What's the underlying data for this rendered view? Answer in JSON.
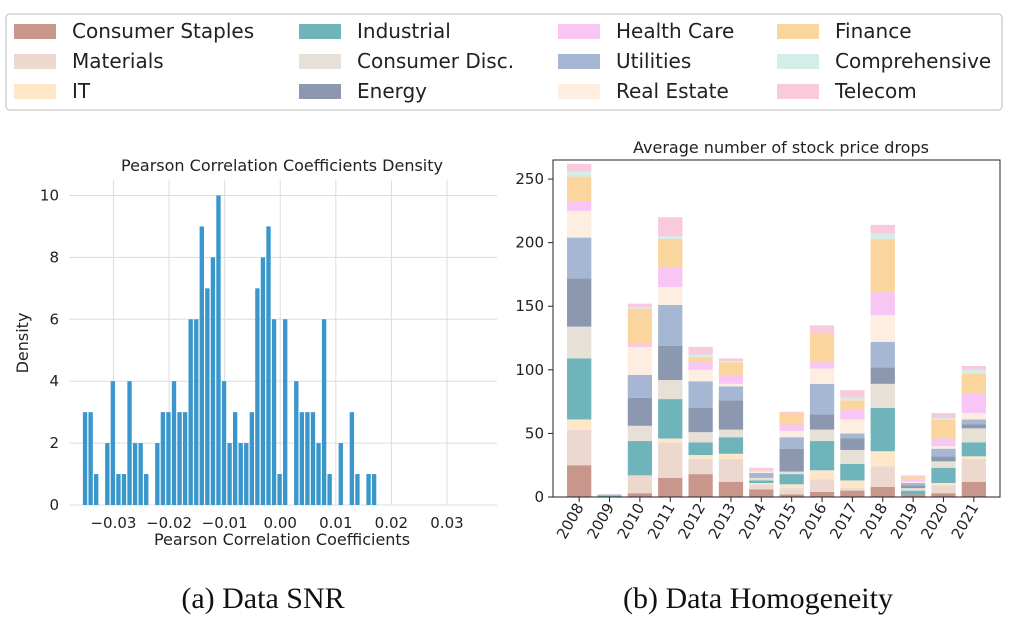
{
  "legend": {
    "entries": [
      {
        "name": "Consumer Staples",
        "color": "#c9968c"
      },
      {
        "name": "Industrial",
        "color": "#6fb4bb"
      },
      {
        "name": "Health Care",
        "color": "#f7c6f4"
      },
      {
        "name": "Finance",
        "color": "#fad59d"
      },
      {
        "name": "Materials",
        "color": "#ecd8cf"
      },
      {
        "name": "Consumer Disc.",
        "color": "#e6e0d6"
      },
      {
        "name": "Utilities",
        "color": "#a5b7d2"
      },
      {
        "name": "Comprehensive",
        "color": "#d4ede8"
      },
      {
        "name": "IT",
        "color": "#fde7c8"
      },
      {
        "name": "Energy",
        "color": "#8b98b0"
      },
      {
        "name": "Real Estate",
        "color": "#fdeee1"
      },
      {
        "name": "Telecom",
        "color": "#f9c9dc"
      }
    ]
  },
  "captions": {
    "a": "(a) Data SNR",
    "b": "(b) Data Homogeneity"
  },
  "chart_data": [
    {
      "type": "bar",
      "title": "Pearson Correlation Coefficients Density",
      "xlabel": "Pearson Correlation Coefficients",
      "ylabel": "Density",
      "xlim": [
        -0.038,
        0.039
      ],
      "ylim": [
        0,
        10.5
      ],
      "xticks": [
        -0.03,
        -0.02,
        -0.01,
        0.0,
        0.01,
        0.02,
        0.03
      ],
      "xtick_labels": [
        "−0.03",
        "−0.02",
        "−0.01",
        "0.00",
        "0.01",
        "0.02",
        "0.03"
      ],
      "yticks": [
        0,
        2,
        4,
        6,
        8,
        10
      ],
      "grid": true,
      "color": "#3a97cc",
      "bin_start": -0.0355,
      "bin_width": 0.001,
      "values": [
        3,
        3,
        1,
        0,
        2,
        4,
        1,
        1,
        4,
        2,
        2,
        1,
        0,
        2,
        3,
        3,
        4,
        3,
        3,
        6,
        6,
        9,
        7,
        8,
        10,
        4,
        2,
        3,
        2,
        2,
        3,
        7,
        8,
        9,
        6,
        1,
        6,
        0,
        4,
        3,
        3,
        3,
        2,
        6,
        1,
        0,
        2,
        0,
        3,
        1,
        0,
        1,
        1
      ]
    },
    {
      "type": "bar",
      "stacked": true,
      "title": "Average number of stock price drops",
      "categories": [
        "2008",
        "2009",
        "2010",
        "2011",
        "2012",
        "2013",
        "2014",
        "2015",
        "2016",
        "2017",
        "2018",
        "2019",
        "2020",
        "2021"
      ],
      "ylim": [
        0,
        265
      ],
      "yticks": [
        0,
        50,
        100,
        150,
        200,
        250
      ],
      "grid": false,
      "series": [
        {
          "name": "Consumer Staples",
          "values": [
            25,
            0,
            3,
            15,
            18,
            12,
            6,
            2,
            4,
            5,
            8,
            2,
            3,
            12
          ]
        },
        {
          "name": "Materials",
          "values": [
            28,
            0,
            14,
            28,
            12,
            18,
            4,
            5,
            10,
            2,
            16,
            0,
            6,
            18
          ]
        },
        {
          "name": "IT",
          "values": [
            8,
            0,
            0,
            3,
            3,
            4,
            1,
            3,
            7,
            6,
            12,
            0,
            2,
            2
          ]
        },
        {
          "name": "Industrial",
          "values": [
            48,
            1,
            27,
            31,
            10,
            13,
            2,
            8,
            23,
            13,
            34,
            3,
            12,
            11
          ]
        },
        {
          "name": "Consumer Disc.",
          "values": [
            25,
            0,
            12,
            15,
            8,
            6,
            2,
            2,
            9,
            11,
            19,
            2,
            5,
            11
          ]
        },
        {
          "name": "Energy",
          "values": [
            38,
            0,
            22,
            27,
            19,
            23,
            0,
            18,
            12,
            9,
            13,
            2,
            4,
            3
          ]
        },
        {
          "name": "Utilities",
          "values": [
            32,
            1,
            18,
            32,
            21,
            11,
            4,
            9,
            24,
            4,
            20,
            2,
            6,
            4
          ]
        },
        {
          "name": "Real Estate",
          "values": [
            21,
            0,
            22,
            14,
            9,
            2,
            1,
            5,
            12,
            11,
            21,
            1,
            2,
            5
          ]
        },
        {
          "name": "Health Care",
          "values": [
            7,
            0,
            2,
            16,
            6,
            7,
            1,
            5,
            5,
            8,
            18,
            2,
            6,
            15
          ]
        },
        {
          "name": "Finance",
          "values": [
            20,
            0,
            28,
            22,
            4,
            10,
            1,
            9,
            23,
            7,
            42,
            2,
            15,
            16
          ]
        },
        {
          "name": "Comprehensive",
          "values": [
            4,
            0,
            1,
            2,
            2,
            1,
            0,
            0,
            0,
            2,
            4,
            0,
            1,
            3
          ]
        },
        {
          "name": "Telecom",
          "values": [
            6,
            0,
            3,
            15,
            6,
            2,
            1,
            1,
            6,
            6,
            7,
            1,
            4,
            3
          ]
        }
      ]
    }
  ]
}
